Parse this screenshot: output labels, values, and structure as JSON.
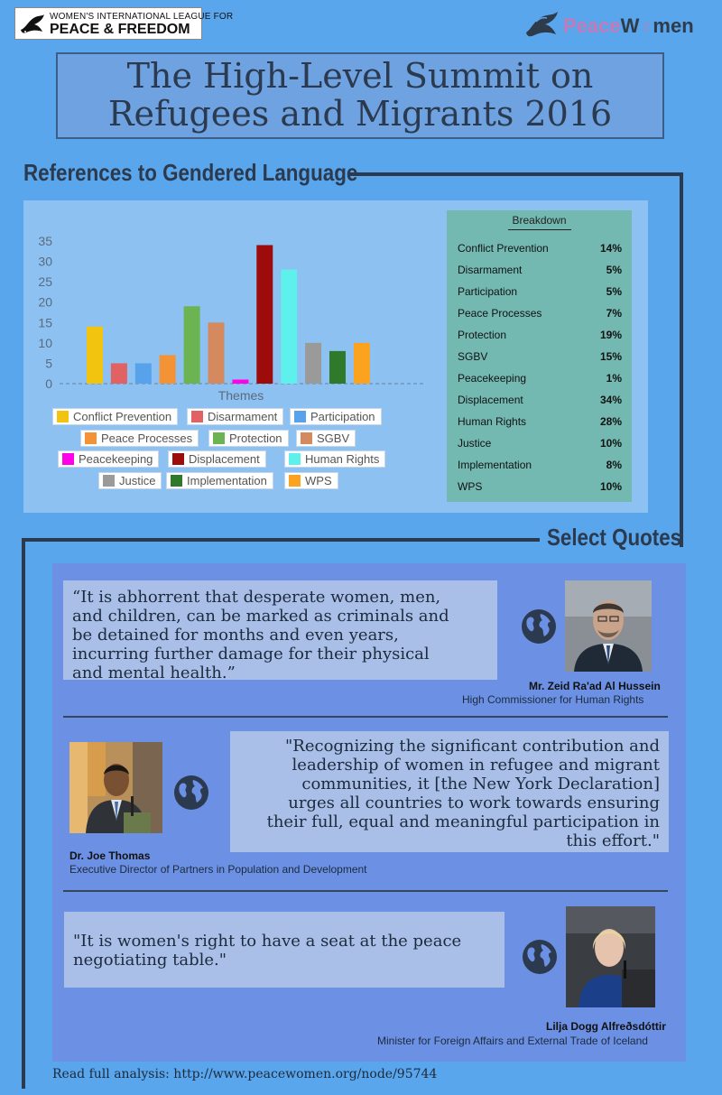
{
  "header": {
    "wilpf": {
      "line1": "WOMEN'S INTERNATIONAL LEAGUE FOR",
      "line2": "PEACE & FREEDOM"
    },
    "peacewomen": {
      "part1": "Peace",
      "part2": "W",
      "part3": "men"
    }
  },
  "title": {
    "line1": "The High-Level Summit on",
    "line2": "Refugees and Migrants 2016"
  },
  "sections": {
    "references": "References to Gendered Language",
    "quotes": "Select Quotes"
  },
  "chart_data": {
    "type": "bar",
    "xlabel": "Themes",
    "ylabel": "",
    "ylim": [
      0,
      35
    ],
    "yticks": [
      0,
      5,
      10,
      15,
      20,
      25,
      30,
      35
    ],
    "grid": false,
    "legend": "bottom",
    "categories": [
      "Conflict Prevention",
      "Disarmament",
      "Participation",
      "Peace Processes",
      "Protection",
      "SGBV",
      "Peacekeeping",
      "Displacement",
      "Human Rights",
      "Justice",
      "Implementation",
      "WPS"
    ],
    "values": [
      14,
      5,
      5,
      7,
      19,
      15,
      1,
      34,
      28,
      10,
      8,
      10
    ],
    "colors": [
      "#f2c40f",
      "#e06263",
      "#57a2ea",
      "#f49336",
      "#6cb352",
      "#d48a5e",
      "#ff00e8",
      "#9e0b0b",
      "#5ef0ea",
      "#9a9a9a",
      "#2f7a2a",
      "#fba21f"
    ]
  },
  "breakdown": {
    "title": "Breakdown",
    "rows": [
      {
        "label": "Conflict Prevention",
        "value": "14%"
      },
      {
        "label": "Disarmament",
        "value": "5%"
      },
      {
        "label": "Participation",
        "value": "5%"
      },
      {
        "label": "Peace Processes",
        "value": "7%"
      },
      {
        "label": "Protection",
        "value": "19%"
      },
      {
        "label": "SGBV",
        "value": "15%"
      },
      {
        "label": "Peacekeeping",
        "value": "1%"
      },
      {
        "label": "Displacement",
        "value": "34%"
      },
      {
        "label": "Human Rights",
        "value": "28%"
      },
      {
        "label": "Justice",
        "value": "10%"
      },
      {
        "label": "Implementation",
        "value": "8%"
      },
      {
        "label": "WPS",
        "value": "10%"
      }
    ]
  },
  "quotes": [
    {
      "lines": [
        "“It is abhorrent that desperate women, men,",
        "and children, can be marked as criminals and",
        "be detained for months and even years,",
        "incurring further damage for their physical",
        "and mental health.”"
      ],
      "name": "Mr. Zeid Ra'ad Al Hussein",
      "role": "High Commissioner for Human Rights"
    },
    {
      "lines": [
        "\"Recognizing the significant contribution and",
        "leadership of women in refugee and migrant",
        "communities, it [the New York Declaration]",
        "urges all countries to work towards ensuring",
        "their full, equal and meaningful participation in",
        "this effort.\""
      ],
      "name": "Dr. Joe Thomas",
      "role": "Executive Director of Partners in Population and Development"
    },
    {
      "lines": [
        "\"It is women's right to have a seat at the peace",
        "negotiating table.\""
      ],
      "name": "Lilja Dogg Alfreðsdóttir",
      "role": "Minister for Foreign Affairs and External Trade of Iceland"
    }
  ],
  "footer": "Read full analysis: http://www.peacewomen.org/node/95744"
}
